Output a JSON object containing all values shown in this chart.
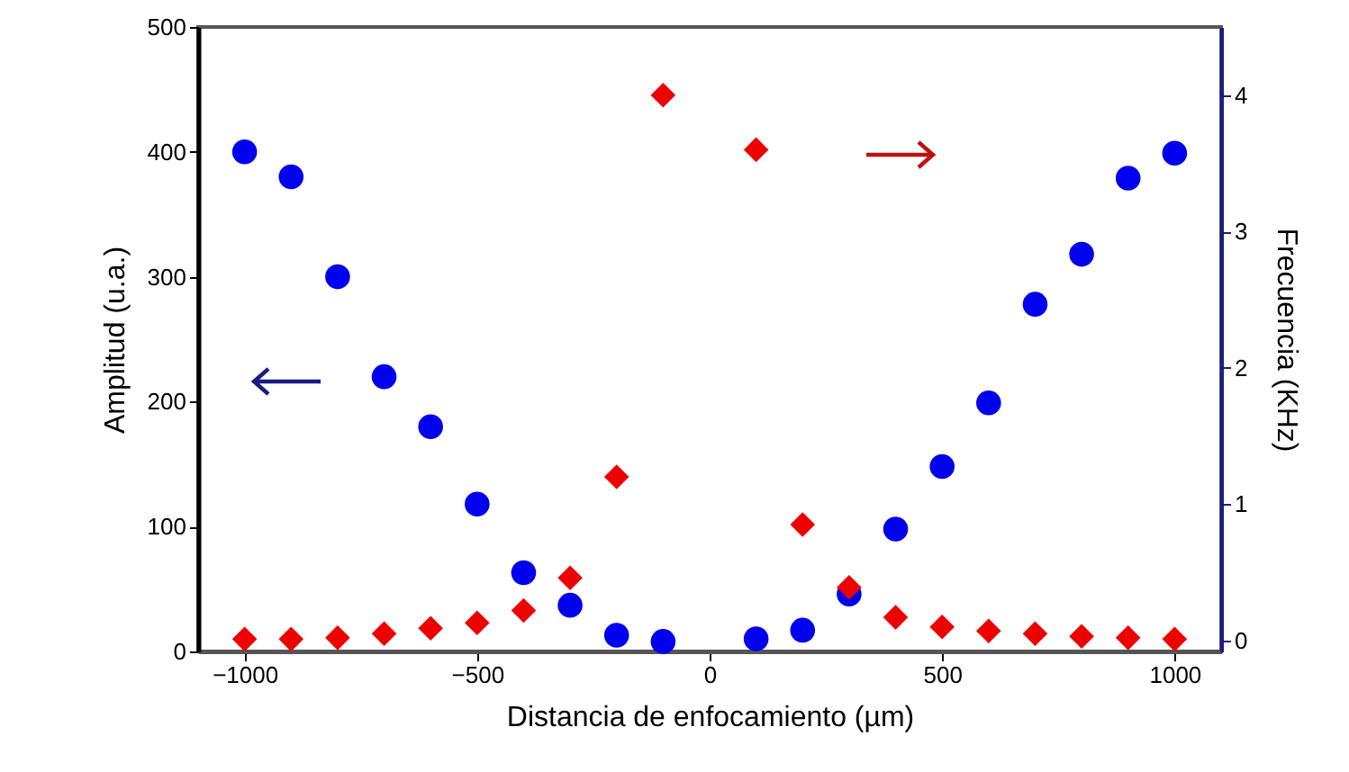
{
  "chart_data": {
    "type": "scatter",
    "xlabel": "Distancia de enfocamiento (µm)",
    "ylabel": "Amplitud (u.a.)",
    "y2label": "Frecuencia (KHz)",
    "x": [
      -1000,
      -900,
      -800,
      -700,
      -600,
      -500,
      -400,
      -300,
      -200,
      -100,
      100,
      200,
      300,
      400,
      500,
      600,
      700,
      800,
      900,
      1000
    ],
    "series": [
      {
        "color": "#0000ee",
        "marker": "circle",
        "values": [
          400,
          380,
          300,
          220,
          180,
          118,
          63,
          37,
          13,
          8,
          10,
          17,
          46,
          98,
          148,
          199,
          278,
          318,
          379,
          399
        ]
      },
      {
        "color": "#ee0000",
        "marker": "diamond",
        "axis": "y2",
        "values": [
          0.01,
          0.01,
          0.02,
          0.05,
          0.09,
          0.13,
          0.22,
          0.46,
          1.2,
          4.0,
          3.6,
          0.85,
          0.39,
          0.17,
          0.1,
          0.07,
          0.05,
          0.03,
          0.02,
          0.01
        ]
      }
    ],
    "xlim": [
      -1100,
      1100
    ],
    "xticks": [
      -1000,
      -500,
      0,
      500,
      1000
    ],
    "ylim": [
      0,
      500
    ],
    "yticks": [
      0,
      100,
      200,
      300,
      400,
      500
    ],
    "y2lim": [
      -0.08,
      4.5
    ],
    "y2ticks": [
      0,
      1,
      2,
      3,
      4
    ],
    "grid": false
  }
}
